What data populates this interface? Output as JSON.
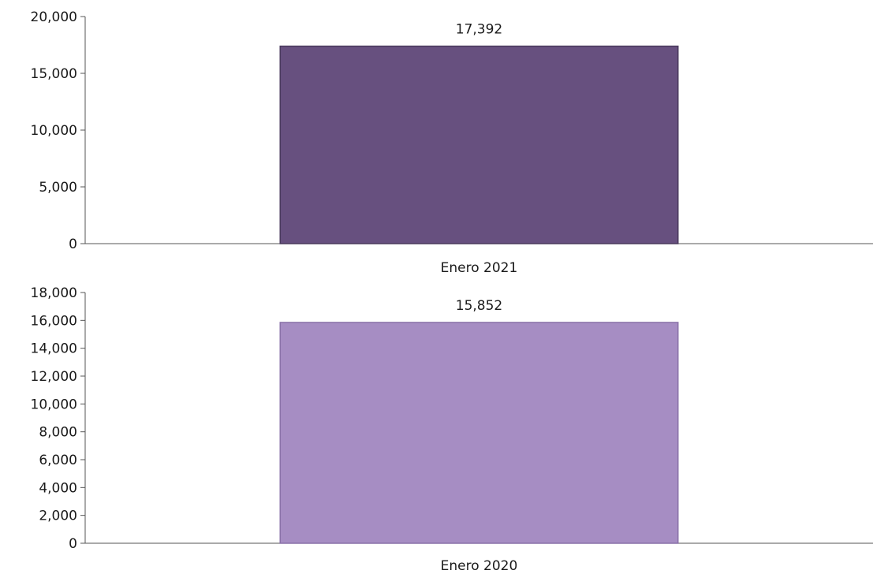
{
  "chart_data": [
    {
      "type": "bar",
      "categories": [
        "Enero 2021"
      ],
      "values": [
        17392
      ],
      "value_labels": [
        "17,392"
      ],
      "ylim": [
        0,
        20000
      ],
      "yticks": [
        0,
        5000,
        10000,
        15000,
        20000
      ],
      "ytick_labels": [
        "0",
        "5,000",
        "10,000",
        "15,000",
        "20,000"
      ],
      "grid": false,
      "legend": "none",
      "colors": {
        "bar": "#67507f",
        "bar_edge": "#4a3a5d"
      }
    },
    {
      "type": "bar",
      "categories": [
        "Enero 2020"
      ],
      "values": [
        15852
      ],
      "value_labels": [
        "15,852"
      ],
      "ylim": [
        0,
        18000
      ],
      "yticks": [
        0,
        2000,
        4000,
        6000,
        8000,
        10000,
        12000,
        14000,
        16000,
        18000
      ],
      "ytick_labels": [
        "0",
        "2,000",
        "4,000",
        "6,000",
        "8,000",
        "10,000",
        "12,000",
        "14,000",
        "16,000",
        "18,000"
      ],
      "grid": false,
      "legend": "none",
      "colors": {
        "bar": "#a68dc3",
        "bar_edge": "#8a72a8"
      }
    }
  ]
}
